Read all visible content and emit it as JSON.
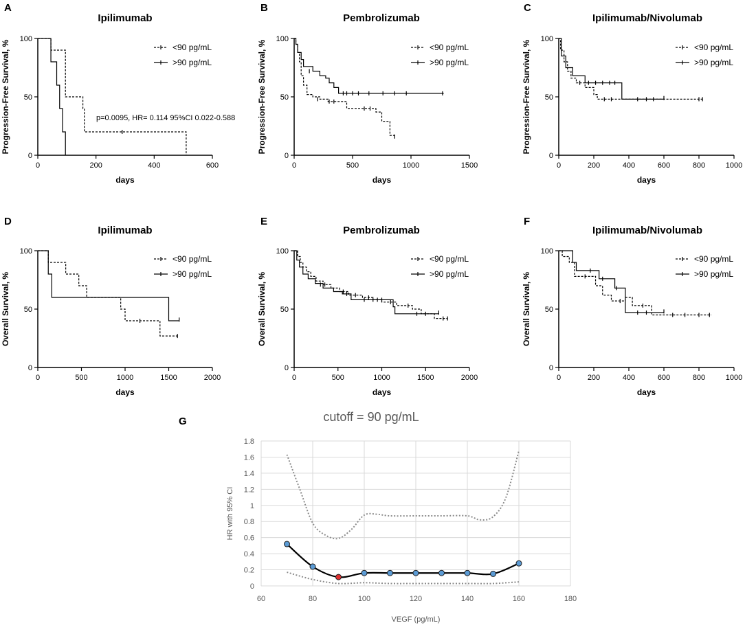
{
  "figure": {
    "series_labels": [
      "<90 pg/mL",
      ">90 pg/mL"
    ],
    "series_styles": {
      "<90 pg/mL": "dotted",
      ">90 pg/mL": "solid"
    }
  },
  "chart_data": [
    {
      "panel": "A",
      "type": "line",
      "title": "Ipilimumab",
      "xlabel": "days",
      "ylabel": "Progression-Free Survival, %",
      "xlim": [
        0,
        600
      ],
      "ylim": [
        0,
        100
      ],
      "xticks": [
        0,
        200,
        400,
        600
      ],
      "yticks": [
        0,
        50,
        100
      ],
      "annotation": "p=0.0095, HR= 0.114 95%CI 0.022-0.588",
      "series": [
        {
          "name": "<90 pg/mL",
          "steps": [
            [
              0,
              100
            ],
            [
              45,
              90
            ],
            [
              95,
              50
            ],
            [
              155,
              40
            ],
            [
              160,
              20
            ],
            [
              510,
              0
            ]
          ],
          "censors": [
            [
              290,
              20
            ]
          ]
        },
        {
          "name": ">90 pg/mL",
          "steps": [
            [
              0,
              100
            ],
            [
              45,
              80
            ],
            [
              65,
              60
            ],
            [
              75,
              40
            ],
            [
              85,
              20
            ],
            [
              95,
              0
            ]
          ],
          "censors": []
        }
      ]
    },
    {
      "panel": "B",
      "type": "line",
      "title": "Pembrolizumab",
      "xlabel": "days",
      "ylabel": "Progression-Free Survival, %",
      "xlim": [
        0,
        1500
      ],
      "ylim": [
        0,
        100
      ],
      "xticks": [
        0,
        500,
        1000,
        1500
      ],
      "yticks": [
        0,
        50,
        100
      ],
      "series": [
        {
          "name": "<90 pg/mL",
          "steps": [
            [
              0,
              100
            ],
            [
              15,
              95
            ],
            [
              30,
              88
            ],
            [
              45,
              80
            ],
            [
              60,
              68
            ],
            [
              80,
              60
            ],
            [
              110,
              52
            ],
            [
              160,
              50
            ],
            [
              220,
              48
            ],
            [
              290,
              46
            ],
            [
              450,
              40
            ],
            [
              700,
              37
            ],
            [
              750,
              29
            ],
            [
              820,
              17
            ],
            [
              860,
              16
            ]
          ],
          "censors": [
            [
              200,
              48
            ],
            [
              300,
              46
            ],
            [
              340,
              46
            ],
            [
              600,
              40
            ],
            [
              650,
              40
            ],
            [
              860,
              16
            ]
          ]
        },
        {
          "name": ">90 pg/mL",
          "steps": [
            [
              0,
              100
            ],
            [
              15,
              95
            ],
            [
              30,
              88
            ],
            [
              60,
              82
            ],
            [
              80,
              76
            ],
            [
              160,
              72
            ],
            [
              220,
              68
            ],
            [
              270,
              66
            ],
            [
              300,
              62
            ],
            [
              340,
              58
            ],
            [
              380,
              53
            ],
            [
              1280,
              53
            ]
          ],
          "censors": [
            [
              130,
              72
            ],
            [
              420,
              53
            ],
            [
              450,
              53
            ],
            [
              500,
              53
            ],
            [
              550,
              53
            ],
            [
              640,
              53
            ],
            [
              760,
              53
            ],
            [
              860,
              53
            ],
            [
              960,
              53
            ],
            [
              1270,
              53
            ]
          ]
        }
      ]
    },
    {
      "panel": "C",
      "type": "line",
      "title": "Ipilimumab/Nivolumab",
      "xlabel": "days",
      "ylabel": "Progression-Free Survival, %",
      "xlim": [
        0,
        1000
      ],
      "ylim": [
        0,
        100
      ],
      "xticks": [
        0,
        200,
        400,
        600,
        800,
        1000
      ],
      "yticks": [
        0,
        50,
        100
      ],
      "series": [
        {
          "name": "<90 pg/mL",
          "steps": [
            [
              0,
              100
            ],
            [
              10,
              90
            ],
            [
              30,
              80
            ],
            [
              50,
              72
            ],
            [
              70,
              66
            ],
            [
              100,
              62
            ],
            [
              150,
              58
            ],
            [
              200,
              52
            ],
            [
              220,
              48
            ],
            [
              820,
              48
            ]
          ],
          "censors": [
            [
              260,
              48
            ],
            [
              300,
              48
            ],
            [
              450,
              48
            ],
            [
              500,
              48
            ],
            [
              540,
              48
            ],
            [
              800,
              48
            ],
            [
              820,
              48
            ]
          ]
        },
        {
          "name": ">90 pg/mL",
          "steps": [
            [
              0,
              100
            ],
            [
              15,
              85
            ],
            [
              40,
              75
            ],
            [
              80,
              68
            ],
            [
              150,
              62
            ],
            [
              360,
              48
            ],
            [
              600,
              48
            ]
          ],
          "censors": [
            [
              120,
              62
            ],
            [
              170,
              62
            ],
            [
              210,
              62
            ],
            [
              250,
              62
            ],
            [
              290,
              62
            ],
            [
              320,
              62
            ],
            [
              600,
              49
            ]
          ]
        }
      ]
    },
    {
      "panel": "D",
      "type": "line",
      "title": "Ipilimumab",
      "xlabel": "days",
      "ylabel": "Overall Survival, %",
      "xlim": [
        0,
        2000
      ],
      "ylim": [
        0,
        100
      ],
      "xticks": [
        0,
        500,
        1000,
        1500,
        2000
      ],
      "yticks": [
        0,
        50,
        100
      ],
      "series": [
        {
          "name": "<90 pg/mL",
          "steps": [
            [
              0,
              100
            ],
            [
              120,
              90
            ],
            [
              320,
              80
            ],
            [
              470,
              70
            ],
            [
              560,
              60
            ],
            [
              950,
              50
            ],
            [
              1000,
              40
            ],
            [
              1400,
              27
            ],
            [
              1620,
              27
            ]
          ],
          "censors": [
            [
              1170,
              40
            ],
            [
              1600,
              27
            ]
          ]
        },
        {
          "name": ">90 pg/mL",
          "steps": [
            [
              0,
              100
            ],
            [
              120,
              80
            ],
            [
              160,
              60
            ],
            [
              1500,
              40
            ],
            [
              1620,
              40
            ]
          ],
          "censors": [
            [
              1620,
              41
            ]
          ]
        }
      ]
    },
    {
      "panel": "E",
      "type": "line",
      "title": "Pembrolizumab",
      "xlabel": "days",
      "ylabel": "Overall Survival, %",
      "xlim": [
        0,
        2000
      ],
      "ylim": [
        0,
        100
      ],
      "xticks": [
        0,
        500,
        1000,
        1500,
        2000
      ],
      "yticks": [
        0,
        50,
        100
      ],
      "series": [
        {
          "name": "<90 pg/mL",
          "steps": [
            [
              0,
              100
            ],
            [
              40,
              95
            ],
            [
              70,
              90
            ],
            [
              100,
              86
            ],
            [
              140,
              82
            ],
            [
              190,
              78
            ],
            [
              250,
              74
            ],
            [
              330,
              71
            ],
            [
              420,
              68
            ],
            [
              520,
              65
            ],
            [
              620,
              62
            ],
            [
              780,
              60
            ],
            [
              900,
              58
            ],
            [
              1000,
              56
            ],
            [
              1170,
              53
            ],
            [
              1350,
              50
            ],
            [
              1450,
              46
            ],
            [
              1600,
              42
            ],
            [
              1750,
              42
            ]
          ],
          "censors": [
            [
              300,
              71
            ],
            [
              350,
              71
            ],
            [
              560,
              65
            ],
            [
              700,
              62
            ],
            [
              850,
              60
            ],
            [
              950,
              58
            ],
            [
              1100,
              56
            ],
            [
              1300,
              53
            ],
            [
              1500,
              46
            ],
            [
              1700,
              42
            ],
            [
              1750,
              42
            ]
          ]
        },
        {
          "name": ">90 pg/mL",
          "steps": [
            [
              0,
              100
            ],
            [
              30,
              92
            ],
            [
              60,
              86
            ],
            [
              100,
              80
            ],
            [
              160,
              76
            ],
            [
              240,
              72
            ],
            [
              330,
              68
            ],
            [
              450,
              65
            ],
            [
              550,
              63
            ],
            [
              650,
              58
            ],
            [
              1130,
              52
            ],
            [
              1150,
              46
            ],
            [
              1650,
              46
            ]
          ],
          "censors": [
            [
              600,
              63
            ],
            [
              800,
              58
            ],
            [
              900,
              58
            ],
            [
              1000,
              58
            ],
            [
              1400,
              46
            ],
            [
              1650,
              47
            ]
          ]
        }
      ]
    },
    {
      "panel": "F",
      "type": "line",
      "title": "Ipilimumab/Nivolumab",
      "xlabel": "days",
      "ylabel": "Overall Survival, %",
      "xlim": [
        0,
        1000
      ],
      "ylim": [
        0,
        100
      ],
      "xticks": [
        0,
        200,
        400,
        600,
        800,
        1000
      ],
      "yticks": [
        0,
        50,
        100
      ],
      "series": [
        {
          "name": "<90 pg/mL",
          "steps": [
            [
              0,
              100
            ],
            [
              20,
              95
            ],
            [
              60,
              90
            ],
            [
              90,
              78
            ],
            [
              210,
              70
            ],
            [
              250,
              62
            ],
            [
              300,
              57
            ],
            [
              380,
              60
            ],
            [
              420,
              53
            ],
            [
              530,
              45
            ],
            [
              870,
              45
            ]
          ],
          "censors": [
            [
              150,
              78
            ],
            [
              350,
              57
            ],
            [
              480,
              53
            ],
            [
              650,
              45
            ],
            [
              720,
              45
            ],
            [
              800,
              45
            ],
            [
              860,
              45
            ]
          ]
        },
        {
          "name": ">90 pg/mL",
          "steps": [
            [
              0,
              100
            ],
            [
              80,
              90
            ],
            [
              100,
              83
            ],
            [
              230,
              76
            ],
            [
              270,
              76
            ],
            [
              320,
              68
            ],
            [
              380,
              47
            ],
            [
              600,
              47
            ]
          ],
          "censors": [
            [
              180,
              83
            ],
            [
              250,
              76
            ],
            [
              330,
              68
            ],
            [
              450,
              47
            ],
            [
              500,
              47
            ],
            [
              600,
              48
            ]
          ]
        }
      ]
    },
    {
      "panel": "G",
      "type": "line",
      "title": "cutoff = 90 pg/mL",
      "xlabel": "VEGF (pg/mL)",
      "ylabel": "HR with 95% CI",
      "xlim": [
        60,
        180
      ],
      "ylim": [
        0,
        1.8
      ],
      "xticks": [
        60,
        80,
        100,
        120,
        140,
        160,
        180
      ],
      "yticks": [
        0,
        0.2,
        0.4,
        0.6,
        0.8,
        1,
        1.2,
        1.4,
        1.6,
        1.8
      ],
      "ytick_labels": [
        "0",
        "0.2",
        "0.4",
        "0.6",
        "0.8",
        "1",
        "1.2",
        "1.4",
        "1.6",
        "1.8"
      ],
      "grid": true,
      "highlight_x": 90,
      "colors": {
        "hr": "#000000",
        "marker": "#5b9bd5",
        "highlight": "#e03030",
        "ci": "#8c8c8c"
      },
      "series": [
        {
          "name": "HR",
          "x": [
            70,
            80,
            90,
            100,
            110,
            120,
            130,
            140,
            150,
            160
          ],
          "values": [
            0.52,
            0.24,
            0.11,
            0.16,
            0.16,
            0.16,
            0.16,
            0.16,
            0.15,
            0.28
          ]
        },
        {
          "name": "Upper 95% CI",
          "x": [
            70,
            75,
            80,
            85,
            90,
            95,
            100,
            105,
            110,
            120,
            130,
            140,
            145,
            150,
            155,
            160
          ],
          "values": [
            1.63,
            1.2,
            0.78,
            0.63,
            0.59,
            0.7,
            0.88,
            0.89,
            0.87,
            0.87,
            0.87,
            0.87,
            0.82,
            0.86,
            1.1,
            1.68
          ]
        },
        {
          "name": "Lower 95% CI",
          "x": [
            70,
            80,
            90,
            100,
            110,
            120,
            130,
            140,
            150,
            160
          ],
          "values": [
            0.17,
            0.08,
            0.03,
            0.04,
            0.03,
            0.03,
            0.03,
            0.03,
            0.03,
            0.05
          ]
        }
      ]
    }
  ]
}
